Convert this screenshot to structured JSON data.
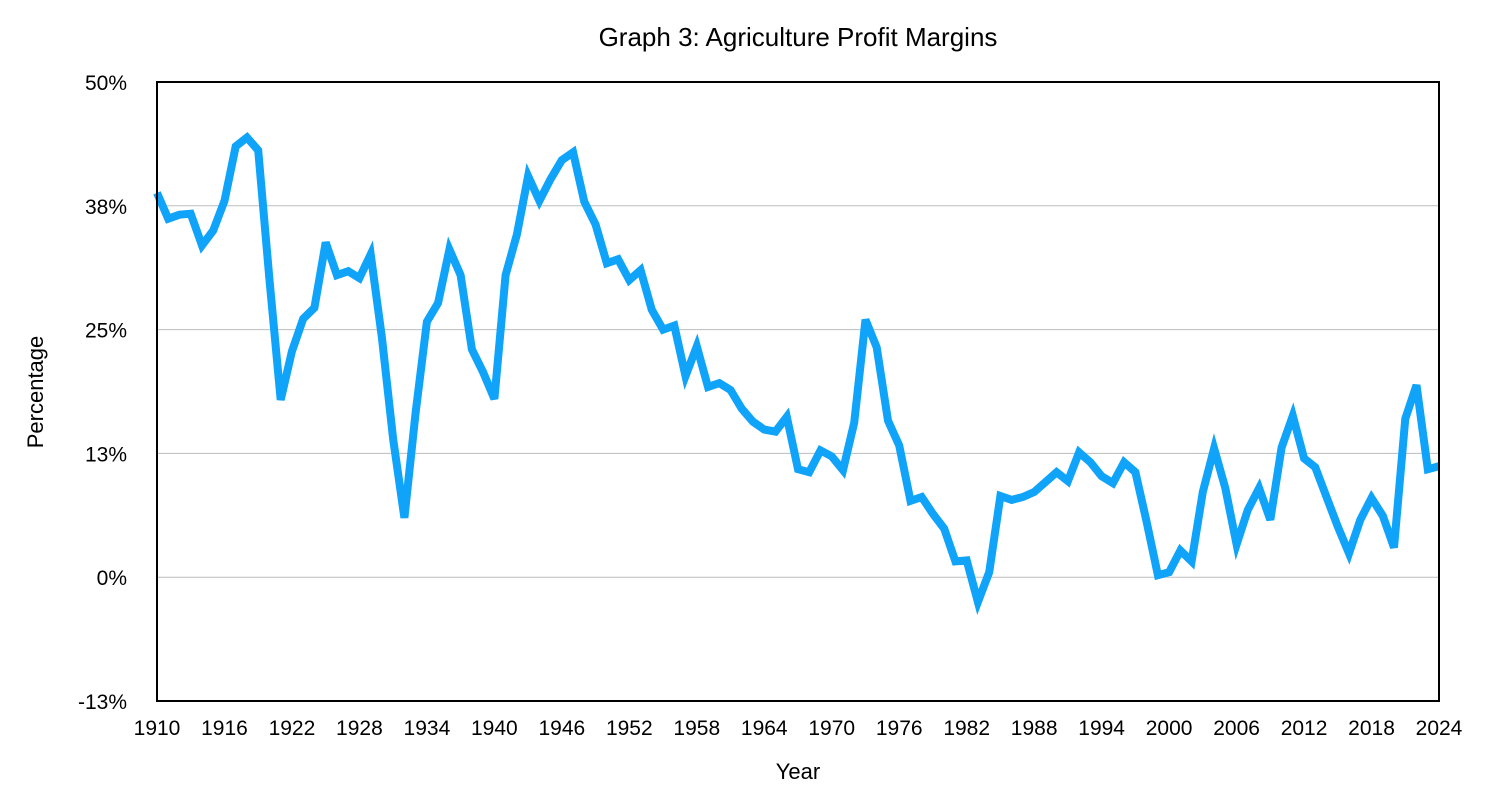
{
  "chart_data": {
    "type": "line",
    "title": "Graph 3: Agriculture Profit Margins",
    "xlabel": "Year",
    "ylabel": "Percentage",
    "xlim": [
      1910,
      2024
    ],
    "ylim": [
      -12.5,
      50
    ],
    "x_ticks": [
      "1910",
      "1916",
      "1922",
      "1928",
      "1934",
      "1940",
      "1946",
      "1952",
      "1958",
      "1964",
      "1970",
      "1976",
      "1982",
      "1988",
      "1994",
      "2000",
      "2006",
      "2012",
      "2018",
      "2024"
    ],
    "y_ticks": [
      {
        "value": 50,
        "label": "50%"
      },
      {
        "value": 37.5,
        "label": "38%"
      },
      {
        "value": 25,
        "label": "25%"
      },
      {
        "value": 12.5,
        "label": "13%"
      },
      {
        "value": 0,
        "label": "0%"
      },
      {
        "value": -12.5,
        "label": "-13%"
      }
    ],
    "grid": "horizontal",
    "line_color": "#0fa3fa",
    "series": [
      {
        "x": [
          1910,
          1911,
          1912,
          1913,
          1914,
          1915,
          1916,
          1917,
          1918,
          1919,
          1920,
          1921,
          1922,
          1923,
          1924,
          1925,
          1926,
          1927,
          1928,
          1929,
          1930,
          1931,
          1932,
          1933,
          1934,
          1935,
          1936,
          1937,
          1938,
          1939,
          1940,
          1941,
          1942,
          1943,
          1944,
          1945,
          1946,
          1947,
          1948,
          1949,
          1950,
          1951,
          1952,
          1953,
          1954,
          1955,
          1956,
          1957,
          1958,
          1959,
          1960,
          1961,
          1962,
          1963,
          1964,
          1965,
          1966,
          1967,
          1968,
          1969,
          1970,
          1971,
          1972,
          1973,
          1974,
          1975,
          1976,
          1977,
          1978,
          1979,
          1980,
          1981,
          1982,
          1983,
          1984,
          1985,
          1986,
          1987,
          1988,
          1989,
          1990,
          1991,
          1992,
          1993,
          1994,
          1995,
          1996,
          1997,
          1998,
          1999,
          2000,
          2001,
          2002,
          2003,
          2004,
          2005,
          2006,
          2007,
          2008,
          2009,
          2010,
          2011,
          2012,
          2013,
          2014,
          2015,
          2016,
          2017,
          2018,
          2019,
          2020,
          2021,
          2022,
          2023,
          2024
        ],
        "values": [
          38.8,
          36.2,
          36.6,
          36.7,
          33.5,
          35,
          38,
          43.5,
          44.4,
          43.1,
          30,
          17.9,
          22.8,
          26.1,
          27.2,
          33.8,
          30.5,
          30.9,
          30.2,
          32.6,
          24.2,
          13.9,
          6,
          16.6,
          25.8,
          27.7,
          33.1,
          30.5,
          23,
          20.7,
          18,
          30.5,
          34.6,
          40.5,
          38,
          40.2,
          42.1,
          42.9,
          37.9,
          35.6,
          31.7,
          32.1,
          30,
          31,
          27,
          25,
          25.4,
          20.3,
          23.3,
          19.2,
          19.6,
          18.9,
          17,
          15.7,
          14.9,
          14.7,
          16.2,
          10.9,
          10.6,
          12.8,
          12.2,
          10.8,
          15.6,
          26,
          23.2,
          15.8,
          13.3,
          7.7,
          8.1,
          6.4,
          4.9,
          1.6,
          1.7,
          -2.5,
          0.5,
          8.2,
          7.8,
          8.1,
          8.6,
          9.6,
          10.6,
          9.7,
          12.6,
          11.6,
          10.2,
          9.5,
          11.6,
          10.6,
          5.6,
          0.2,
          0.5,
          2.7,
          1.6,
          8.6,
          13,
          9,
          3.3,
          6.8,
          9,
          5.8,
          13.1,
          16.3,
          12,
          11.1,
          8.1,
          5.1,
          2.4,
          5.8,
          8,
          6.2,
          3,
          16,
          19.4,
          10.9,
          11.2
        ]
      }
    ]
  }
}
